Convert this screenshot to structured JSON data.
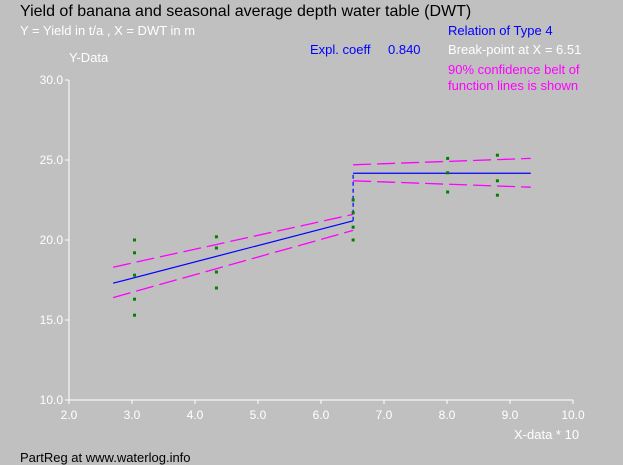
{
  "chart_data": {
    "type": "scatter",
    "title": "Yield of banana and seasonal average depth water table (DWT)",
    "subtitle": "Y = Yield in t/a , X = DWT in m",
    "ylabel": "Y-Data",
    "xlabel": "X-data * 10",
    "xlim": [
      2.0,
      10.0
    ],
    "ylim": [
      10.0,
      30.0
    ],
    "xticks": [
      "2.0",
      "3.0",
      "4.0",
      "5.0",
      "6.0",
      "7.0",
      "8.0",
      "9.0",
      "10.0"
    ],
    "yticks": [
      "10.0",
      "15.0",
      "20.0",
      "25.0",
      "30.0"
    ],
    "points": [
      [
        3.04,
        20.0
      ],
      [
        3.04,
        19.2
      ],
      [
        3.04,
        17.8
      ],
      [
        3.04,
        16.3
      ],
      [
        3.04,
        15.3
      ],
      [
        4.34,
        20.2
      ],
      [
        4.34,
        19.5
      ],
      [
        4.34,
        18.0
      ],
      [
        4.34,
        17.0
      ],
      [
        6.51,
        22.5
      ],
      [
        6.51,
        21.7
      ],
      [
        6.51,
        20.8
      ],
      [
        6.51,
        20.0
      ],
      [
        8.01,
        25.1
      ],
      [
        8.01,
        24.2
      ],
      [
        8.01,
        23.0
      ],
      [
        8.8,
        25.3
      ],
      [
        8.8,
        23.7
      ],
      [
        8.8,
        22.8
      ]
    ],
    "fit_segments": [
      {
        "x": [
          2.7,
          6.51
        ],
        "y": [
          17.3,
          21.2
        ]
      },
      {
        "x": [
          6.51,
          9.33
        ],
        "y": [
          24.17,
          24.17
        ]
      }
    ],
    "upper_band": [
      {
        "x": [
          2.7,
          6.51
        ],
        "y": [
          18.3,
          21.6
        ]
      },
      {
        "x": [
          6.51,
          9.33
        ],
        "y": [
          24.7,
          25.1
        ]
      }
    ],
    "lower_band": [
      {
        "x": [
          2.7,
          6.51
        ],
        "y": [
          16.4,
          20.6
        ]
      },
      {
        "x": [
          6.51,
          9.33
        ],
        "y": [
          23.7,
          23.3
        ]
      }
    ],
    "breakpoint": 6.51,
    "colors": {
      "points": "#008000",
      "fit": "#0000ff",
      "band": "#ff00ff",
      "axes": "#ffffff"
    }
  },
  "annotations": {
    "expl_label": "Expl. coeff",
    "expl_value": "0.840",
    "relation": "Relation of Type 4",
    "breakpoint": "Break-point at X =  6.51",
    "confidence": "90% confidence belt of",
    "confidence2": "function lines is shown"
  },
  "footer": "PartReg at www.waterlog.info"
}
